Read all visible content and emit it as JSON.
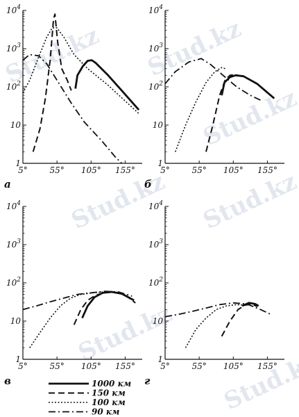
{
  "watermark": {
    "text": "Stud.kz"
  },
  "chart_data": [
    {
      "type": "line",
      "panel": "а",
      "log_y": true,
      "xlim": [
        5,
        180
      ],
      "ylim": [
        1,
        10000
      ],
      "xticks": [
        "5°",
        "55°",
        "105°",
        "155°"
      ],
      "xtick_values": [
        5,
        55,
        105,
        155
      ],
      "yticks": [
        {
          "base": "1",
          "exp": ""
        },
        {
          "base": "10",
          "exp": ""
        },
        {
          "base": "10",
          "exp": "2"
        },
        {
          "base": "10",
          "exp": "3"
        },
        {
          "base": "10",
          "exp": "4"
        }
      ],
      "ytick_values": [
        1,
        10,
        100,
        1000,
        10000
      ],
      "series": [
        {
          "legend_index": 0,
          "points": [
            [
              82,
              90
            ],
            [
              85,
              200
            ],
            [
              93,
              350
            ],
            [
              100,
              480
            ],
            [
              106,
              500
            ],
            [
              112,
              420
            ],
            [
              130,
              200
            ],
            [
              150,
              80
            ],
            [
              175,
              25
            ]
          ]
        },
        {
          "legend_index": 1,
          "points": [
            [
              20,
              2
            ],
            [
              30,
              8
            ],
            [
              38,
              50
            ],
            [
              45,
              500
            ],
            [
              50,
              6000
            ],
            [
              52,
              8000
            ],
            [
              56,
              1500
            ],
            [
              62,
              300
            ],
            [
              70,
              150
            ],
            [
              76,
              80
            ]
          ]
        },
        {
          "legend_index": 2,
          "points": [
            [
              5,
              70
            ],
            [
              15,
              150
            ],
            [
              28,
              600
            ],
            [
              40,
              2000
            ],
            [
              48,
              3500
            ],
            [
              55,
              3500
            ],
            [
              65,
              2000
            ],
            [
              80,
              700
            ],
            [
              100,
              300
            ],
            [
              130,
              110
            ],
            [
              175,
              20
            ]
          ]
        },
        {
          "legend_index": 3,
          "points": [
            [
              5,
              500
            ],
            [
              15,
              700
            ],
            [
              28,
              650
            ],
            [
              40,
              400
            ],
            [
              55,
              150
            ],
            [
              75,
              40
            ],
            [
              95,
              12
            ],
            [
              120,
              4
            ],
            [
              140,
              1.5
            ],
            [
              150,
              1
            ]
          ]
        }
      ]
    },
    {
      "type": "line",
      "panel": "б",
      "log_y": true,
      "xlim": [
        5,
        180
      ],
      "ylim": [
        1,
        10000
      ],
      "xticks": [
        "5°",
        "55°",
        "105°",
        "155°"
      ],
      "xtick_values": [
        5,
        55,
        105,
        155
      ],
      "yticks": [
        {
          "base": "1",
          "exp": ""
        },
        {
          "base": "10",
          "exp": ""
        },
        {
          "base": "10",
          "exp": "2"
        },
        {
          "base": "10",
          "exp": "3"
        },
        {
          "base": "10",
          "exp": "4"
        }
      ],
      "ytick_values": [
        1,
        10,
        100,
        1000,
        10000
      ],
      "series": [
        {
          "legend_index": 0,
          "points": [
            [
              88,
              60
            ],
            [
              92,
              130
            ],
            [
              100,
              180
            ],
            [
              108,
              200
            ],
            [
              120,
              190
            ],
            [
              140,
              120
            ],
            [
              165,
              50
            ]
          ]
        },
        {
          "legend_index": 1,
          "points": [
            [
              65,
              2
            ],
            [
              75,
              10
            ],
            [
              85,
              60
            ],
            [
              93,
              150
            ],
            [
              100,
              200
            ],
            [
              108,
              210
            ],
            [
              112,
              200
            ]
          ]
        },
        {
          "legend_index": 2,
          "points": [
            [
              20,
              2
            ],
            [
              35,
              10
            ],
            [
              50,
              40
            ],
            [
              65,
              130
            ],
            [
              78,
              250
            ],
            [
              88,
              320
            ],
            [
              93,
              300
            ]
          ]
        },
        {
          "legend_index": 3,
          "points": [
            [
              5,
              120
            ],
            [
              20,
              250
            ],
            [
              40,
              450
            ],
            [
              58,
              550
            ],
            [
              72,
              380
            ],
            [
              90,
              200
            ],
            [
              110,
              100
            ],
            [
              130,
              60
            ],
            [
              145,
              45
            ]
          ]
        }
      ]
    },
    {
      "type": "line",
      "panel": "в",
      "log_y": true,
      "xlim": [
        5,
        180
      ],
      "ylim": [
        1,
        10000
      ],
      "xticks": [
        "5°",
        "55°",
        "105°",
        "155°"
      ],
      "xtick_values": [
        5,
        55,
        105,
        155
      ],
      "yticks": [
        {
          "base": "1",
          "exp": ""
        },
        {
          "base": "10",
          "exp": ""
        },
        {
          "base": "10",
          "exp": "2"
        },
        {
          "base": "10",
          "exp": "3"
        },
        {
          "base": "10",
          "exp": "4"
        }
      ],
      "ytick_values": [
        1,
        10,
        100,
        1000,
        10000
      ],
      "series": [
        {
          "legend_index": 0,
          "points": [
            [
              92,
              12
            ],
            [
              100,
              25
            ],
            [
              110,
              42
            ],
            [
              122,
              55
            ],
            [
              135,
              58
            ],
            [
              150,
              52
            ],
            [
              168,
              35
            ]
          ]
        },
        {
          "legend_index": 1,
          "points": [
            [
              80,
              8
            ],
            [
              90,
              20
            ],
            [
              100,
              35
            ],
            [
              112,
              48
            ],
            [
              125,
              55
            ],
            [
              140,
              58
            ],
            [
              155,
              48
            ],
            [
              170,
              30
            ]
          ]
        },
        {
          "legend_index": 2,
          "points": [
            [
              15,
              2
            ],
            [
              30,
              5
            ],
            [
              45,
              12
            ],
            [
              60,
              25
            ],
            [
              75,
              40
            ],
            [
              90,
              50
            ],
            [
              108,
              55
            ],
            [
              122,
              58
            ]
          ]
        },
        {
          "legend_index": 3,
          "points": [
            [
              5,
              20
            ],
            [
              25,
              25
            ],
            [
              45,
              32
            ],
            [
              65,
              40
            ],
            [
              85,
              50
            ],
            [
              105,
              55
            ],
            [
              125,
              60
            ],
            [
              145,
              58
            ],
            [
              165,
              45
            ]
          ]
        }
      ]
    },
    {
      "type": "line",
      "panel": "г",
      "log_y": true,
      "xlim": [
        5,
        180
      ],
      "ylim": [
        1,
        10000
      ],
      "xticks": [
        "5°",
        "55°",
        "105°",
        "155°"
      ],
      "xtick_values": [
        5,
        55,
        105,
        155
      ],
      "yticks": [
        {
          "base": "1",
          "exp": ""
        },
        {
          "base": "10",
          "exp": ""
        },
        {
          "base": "10",
          "exp": "2"
        },
        {
          "base": "10",
          "exp": "3"
        },
        {
          "base": "10",
          "exp": "4"
        }
      ],
      "ytick_values": [
        1,
        10,
        100,
        1000,
        10000
      ],
      "series": [
        {
          "legend_index": 0,
          "points": [
            [
              118,
              25
            ],
            [
              128,
              30
            ],
            [
              137,
              28
            ],
            [
              142,
              25
            ]
          ]
        },
        {
          "legend_index": 1,
          "points": [
            [
              88,
              4
            ],
            [
              100,
              10
            ],
            [
              112,
              20
            ],
            [
              122,
              26
            ],
            [
              132,
              28
            ],
            [
              140,
              24
            ]
          ]
        },
        {
          "legend_index": 2,
          "points": [
            [
              35,
              2
            ],
            [
              50,
              6
            ],
            [
              65,
              12
            ],
            [
              80,
              20
            ],
            [
              95,
              25
            ],
            [
              110,
              27
            ],
            [
              125,
              26
            ]
          ]
        },
        {
          "legend_index": 3,
          "points": [
            [
              5,
              13
            ],
            [
              25,
              15
            ],
            [
              45,
              18
            ],
            [
              65,
              22
            ],
            [
              85,
              27
            ],
            [
              105,
              30
            ],
            [
              125,
              28
            ],
            [
              145,
              20
            ],
            [
              160,
              15
            ]
          ]
        }
      ]
    }
  ],
  "legend": {
    "entries": [
      {
        "label": "1000 км",
        "style": "solid"
      },
      {
        "label": "150 км",
        "style": "dashed"
      },
      {
        "label": "100 км",
        "style": "dotted"
      },
      {
        "label": "90 км",
        "style": "dashdot"
      }
    ]
  }
}
